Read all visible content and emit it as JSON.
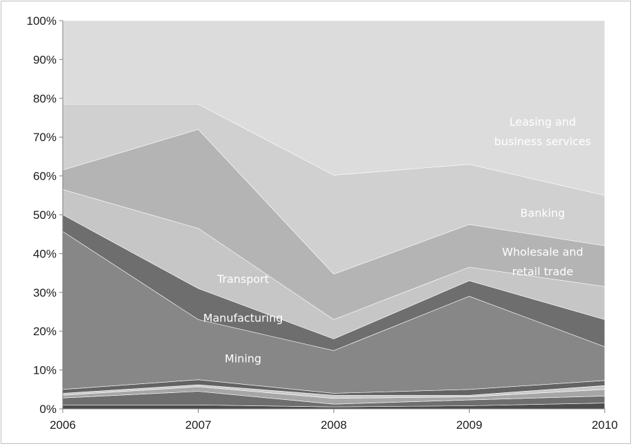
{
  "chart_data": {
    "type": "area",
    "stacked": true,
    "x": [
      "2006",
      "2007",
      "2008",
      "2009",
      "2010"
    ],
    "ylim": [
      0,
      100
    ],
    "y_ticks": [
      "0%",
      "10%",
      "20%",
      "30%",
      "40%",
      "50%",
      "60%",
      "70%",
      "80%",
      "90%",
      "100%"
    ],
    "grid": false,
    "series": [
      {
        "name": "",
        "color": "#4d4d4d",
        "values": [
          1.0,
          1.0,
          0.5,
          0.8,
          1.5
        ]
      },
      {
        "name": "",
        "color": "#6e6e6e",
        "values": [
          1.8,
          3.5,
          0.7,
          1.5,
          1.8
        ]
      },
      {
        "name": "",
        "color": "#a6a6a6",
        "values": [
          0.7,
          1.2,
          1.5,
          0.8,
          1.7
        ]
      },
      {
        "name": "",
        "color": "#c9c9c9",
        "values": [
          0.5,
          0.5,
          0.8,
          0.4,
          1.0
        ]
      },
      {
        "name": "",
        "color": "#636363",
        "values": [
          1.0,
          1.3,
          0.5,
          1.5,
          1.3
        ]
      },
      {
        "name": "Mining",
        "color": "#878787",
        "values": [
          40.7,
          15.5,
          11.0,
          24.0,
          8.7
        ]
      },
      {
        "name": "Manufacturing",
        "color": "#6e6e6e",
        "values": [
          4.3,
          8.0,
          3.0,
          4.0,
          7.0
        ]
      },
      {
        "name": "Transport",
        "color": "#c6c6c6",
        "values": [
          6.5,
          15.5,
          5.0,
          3.5,
          8.5
        ]
      },
      {
        "name": "",
        "color": "#b4b4b4",
        "values": [
          5.0,
          25.5,
          11.7,
          11.0,
          10.5
        ]
      },
      {
        "name": "",
        "color": "#d0d0d0",
        "values": [
          17.0,
          6.5,
          25.5,
          15.5,
          13.0
        ]
      },
      {
        "name": "",
        "color": "#dcdcdc",
        "values": [
          21.5,
          21.5,
          39.8,
          37.0,
          45.0
        ]
      }
    ],
    "annotations": [
      {
        "text": "Leasing and",
        "x": "2010",
        "value": 74
      },
      {
        "text": "business services",
        "x": "2010",
        "value": 69
      },
      {
        "text": "Banking",
        "x": "2010",
        "value": 50.5
      },
      {
        "text": "Wholesale and",
        "x": "2010",
        "value": 40.5
      },
      {
        "text": "retail trade",
        "x": "2010",
        "value": 35.5
      },
      {
        "text": "Transport",
        "x": "2007",
        "value": 33.5
      },
      {
        "text": "Manufacturing",
        "x": "2007",
        "value": 23.5
      },
      {
        "text": "Mining",
        "x": "2007",
        "value": 13
      }
    ]
  }
}
